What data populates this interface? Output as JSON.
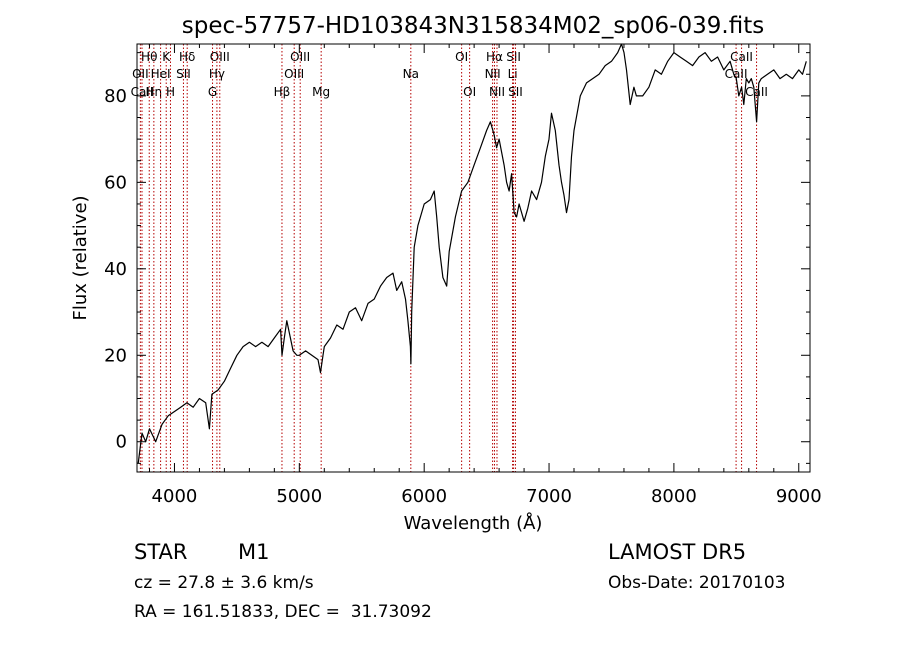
{
  "chart_data": {
    "type": "line",
    "title": "spec-57757-HD103843N315834M02_sp06-039.fits",
    "xlabel": "Wavelength (Å)",
    "ylabel": "Flux (relative)",
    "xlim": [
      3700,
      9090
    ],
    "ylim": [
      -7,
      92
    ],
    "xticks": [
      4000,
      5000,
      6000,
      7000,
      8000,
      9000
    ],
    "yticks": [
      0,
      20,
      40,
      60,
      80
    ],
    "grid": false,
    "series": [
      {
        "x": [
          3710,
          3740,
          3770,
          3800,
          3850,
          3900,
          3950,
          4000,
          4050,
          4100,
          4150,
          4200,
          4250,
          4280,
          4300,
          4350,
          4400,
          4450,
          4500,
          4550,
          4600,
          4650,
          4700,
          4750,
          4800,
          4850,
          4861,
          4880,
          4900,
          4950,
          4980,
          5000,
          5050,
          5100,
          5150,
          5170,
          5190,
          5200,
          5250,
          5300,
          5350,
          5400,
          5450,
          5500,
          5550,
          5600,
          5650,
          5700,
          5750,
          5780,
          5820,
          5850,
          5870,
          5890,
          5894,
          5900,
          5920,
          5950,
          6000,
          6050,
          6080,
          6100,
          6120,
          6150,
          6180,
          6200,
          6250,
          6300,
          6350,
          6400,
          6450,
          6500,
          6530,
          6560,
          6580,
          6600,
          6640,
          6660,
          6680,
          6700,
          6720,
          6740,
          6760,
          6800,
          6830,
          6860,
          6900,
          6940,
          6970,
          7000,
          7020,
          7050,
          7080,
          7100,
          7120,
          7140,
          7160,
          7180,
          7200,
          7250,
          7300,
          7350,
          7400,
          7450,
          7500,
          7550,
          7580,
          7600,
          7620,
          7650,
          7680,
          7700,
          7750,
          7800,
          7850,
          7900,
          7950,
          8000,
          8050,
          8100,
          8150,
          8200,
          8250,
          8300,
          8350,
          8400,
          8450,
          8480,
          8500,
          8520,
          8542,
          8560,
          8580,
          8600,
          8620,
          8640,
          8662,
          8680,
          8700,
          8750,
          8800,
          8850,
          8900,
          8950,
          9000,
          9030,
          9060
        ],
        "y": [
          -5,
          2,
          0,
          3,
          0,
          4,
          6,
          7,
          8,
          9,
          8,
          10,
          9,
          3,
          11,
          12,
          14,
          17,
          20,
          22,
          23,
          22,
          23,
          22,
          24,
          26,
          20,
          24,
          28,
          21,
          20,
          20,
          21,
          20,
          19,
          16,
          20,
          22,
          24,
          27,
          26,
          30,
          31,
          28,
          32,
          33,
          36,
          38,
          39,
          35,
          37,
          33,
          28,
          22,
          18,
          30,
          45,
          50,
          55,
          56,
          58,
          52,
          45,
          38,
          36,
          44,
          52,
          58,
          60,
          64,
          68,
          72,
          74,
          71,
          68,
          70,
          64,
          60,
          58,
          62,
          53,
          52,
          55,
          51,
          54,
          58,
          56,
          60,
          66,
          70,
          76,
          72,
          64,
          60,
          57,
          53,
          56,
          66,
          72,
          80,
          83,
          84,
          85,
          87,
          88,
          90,
          92,
          90,
          86,
          78,
          82,
          80,
          80,
          82,
          86,
          85,
          88,
          90,
          89,
          88,
          87,
          89,
          90,
          88,
          89,
          86,
          88,
          85,
          84,
          80,
          82,
          78,
          84,
          83,
          84,
          82,
          74,
          83,
          84,
          85,
          86,
          84,
          85,
          84,
          86,
          85,
          88
        ]
      }
    ],
    "line_markers": [
      {
        "label": "Hθ",
        "x": 3798,
        "row": 0
      },
      {
        "label": "OII",
        "x": 3727,
        "row": 1
      },
      {
        "label": "CaII",
        "x": 3740,
        "row": 2
      },
      {
        "label": "Hη",
        "x": 3835,
        "row": 2
      },
      {
        "label": "K",
        "x": 3934,
        "row": 0
      },
      {
        "label": "HeI",
        "x": 3889,
        "row": 1
      },
      {
        "label": "H",
        "x": 3968,
        "row": 2
      },
      {
        "label": "Hδ",
        "x": 4102,
        "row": 0
      },
      {
        "label": "SII",
        "x": 4072,
        "row": 1
      },
      {
        "label": "OIII",
        "x": 4363,
        "row": 0
      },
      {
        "label": "Hγ",
        "x": 4340,
        "row": 1
      },
      {
        "label": "G",
        "x": 4305,
        "row": 2
      },
      {
        "label": "Hβ",
        "x": 4861,
        "row": 2
      },
      {
        "label": "OIII",
        "x": 5007,
        "row": 0
      },
      {
        "label": "OIII",
        "x": 4959,
        "row": 1
      },
      {
        "label": "Mg",
        "x": 5175,
        "row": 2
      },
      {
        "label": "Na",
        "x": 5893,
        "row": 1
      },
      {
        "label": "OI",
        "x": 6300,
        "row": 0
      },
      {
        "label": "OI",
        "x": 6364,
        "row": 2
      },
      {
        "label": "Hα",
        "x": 6563,
        "row": 0
      },
      {
        "label": "NII",
        "x": 6548,
        "row": 1
      },
      {
        "label": "NII",
        "x": 6583,
        "row": 2
      },
      {
        "label": "SII",
        "x": 6716,
        "row": 0
      },
      {
        "label": "Li",
        "x": 6708,
        "row": 1
      },
      {
        "label": "SII",
        "x": 6731,
        "row": 2
      },
      {
        "label": "CaII",
        "x": 8542,
        "row": 0
      },
      {
        "label": "CaII",
        "x": 8498,
        "row": 1
      },
      {
        "label": "CaII",
        "x": 8662,
        "row": 2
      }
    ],
    "colors": {
      "spectrum": "#000000",
      "markers": "#b40000"
    }
  },
  "info": {
    "obj_type": "STAR",
    "obj_class": "M1",
    "survey": "LAMOST DR5",
    "cz": "cz = 27.8 ± 3.6 km/s",
    "obs_date": "Obs-Date: 20170103",
    "radec": "RA = 161.51833, DEC =  31.73092"
  }
}
